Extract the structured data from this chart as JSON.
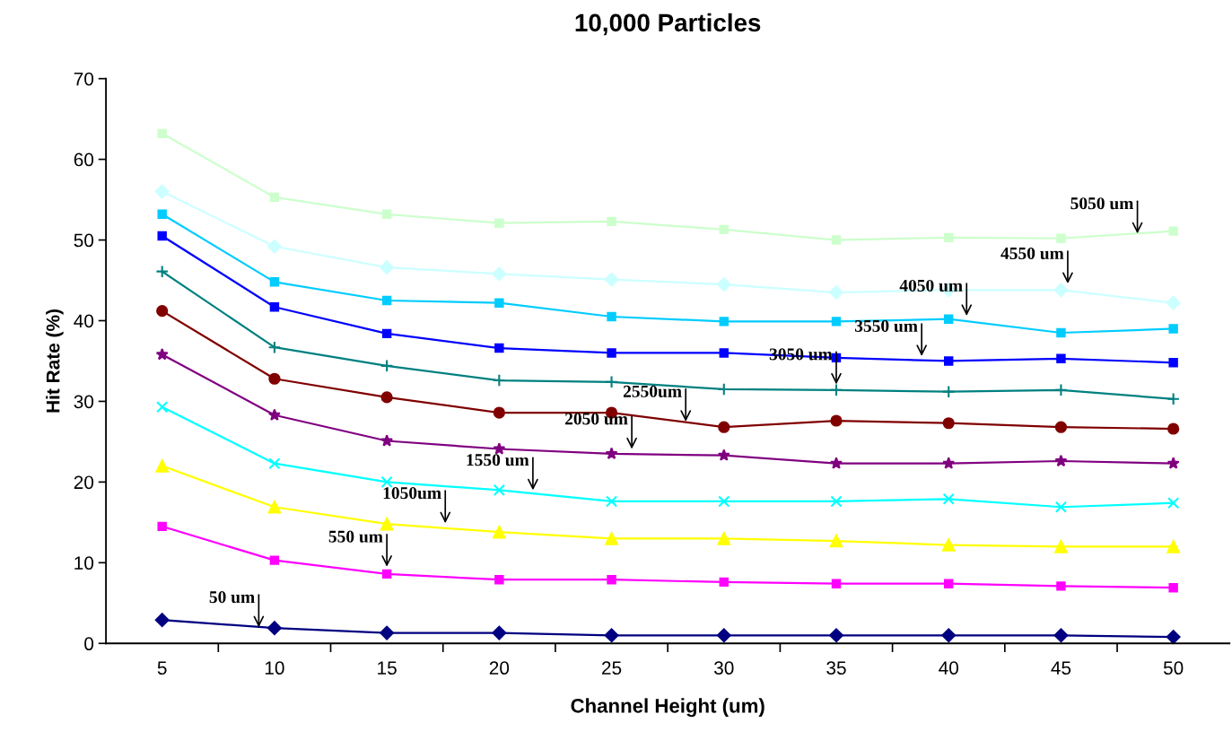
{
  "chart_data": {
    "type": "line",
    "title": "10,000 Particles",
    "xlabel": "Channel Height (um)",
    "ylabel": "Hit Rate (%)",
    "x": [
      5,
      10,
      15,
      20,
      25,
      30,
      35,
      40,
      45,
      50
    ],
    "xlim": [
      2.5,
      52.5
    ],
    "xticks": [
      {
        "value": 5,
        "label": "5"
      },
      {
        "value": 7.5,
        "label": null
      },
      {
        "value": 10,
        "label": "10"
      },
      {
        "value": 12.5,
        "label": null
      },
      {
        "value": 15,
        "label": "15"
      },
      {
        "value": 17.5,
        "label": null
      },
      {
        "value": 20,
        "label": "20"
      },
      {
        "value": 22.5,
        "label": null
      },
      {
        "value": 25,
        "label": "25"
      },
      {
        "value": 27.5,
        "label": null
      },
      {
        "value": 30,
        "label": "30"
      },
      {
        "value": 32.5,
        "label": null
      },
      {
        "value": 35,
        "label": "35"
      },
      {
        "value": 37.5,
        "label": null
      },
      {
        "value": 40,
        "label": "40"
      },
      {
        "value": 42.5,
        "label": null
      },
      {
        "value": 45,
        "label": "45"
      },
      {
        "value": 47.5,
        "label": null
      },
      {
        "value": 50,
        "label": "50"
      }
    ],
    "ylim": [
      0,
      70
    ],
    "yticks": [
      0,
      10,
      20,
      30,
      40,
      50,
      60,
      70
    ],
    "grid": false,
    "legend": false,
    "series": [
      {
        "color": "#000080",
        "marker": "diamond",
        "values": [
          2.9,
          1.9,
          1.3,
          1.3,
          1.0,
          1.0,
          1.0,
          1.0,
          1.0,
          0.8
        ]
      },
      {
        "color": "#ff00ff",
        "marker": "square",
        "values": [
          14.5,
          10.3,
          8.6,
          7.9,
          7.9,
          7.6,
          7.4,
          7.4,
          7.1,
          6.9
        ]
      },
      {
        "color": "#ffff00",
        "marker": "triangle",
        "values": [
          22.0,
          16.9,
          14.8,
          13.8,
          13.0,
          13.0,
          12.7,
          12.2,
          12.0,
          12.0
        ]
      },
      {
        "color": "#00ffff",
        "marker": "cross",
        "values": [
          29.3,
          22.3,
          20.0,
          19.0,
          17.6,
          17.6,
          17.6,
          17.9,
          16.9,
          17.4
        ]
      },
      {
        "color": "#800080",
        "marker": "star",
        "values": [
          35.8,
          28.3,
          25.1,
          24.1,
          23.5,
          23.3,
          22.3,
          22.3,
          22.6,
          22.3
        ]
      },
      {
        "color": "#800000",
        "marker": "circle",
        "values": [
          41.2,
          32.8,
          30.5,
          28.6,
          28.6,
          26.8,
          27.6,
          27.3,
          26.8,
          26.6
        ]
      },
      {
        "color": "#008080",
        "marker": "plus",
        "values": [
          46.1,
          36.7,
          34.4,
          32.6,
          32.4,
          31.5,
          31.4,
          31.2,
          31.4,
          30.3
        ]
      },
      {
        "color": "#0000ff",
        "marker": "square",
        "values": [
          50.5,
          41.7,
          38.4,
          36.6,
          36.0,
          36.0,
          35.4,
          35.0,
          35.3,
          34.8
        ]
      },
      {
        "color": "#00ccff",
        "marker": "square",
        "values": [
          53.2,
          44.8,
          42.5,
          42.2,
          40.5,
          39.9,
          39.9,
          40.2,
          38.5,
          39.0
        ]
      },
      {
        "color": "#ccffff",
        "marker": "diamond",
        "values": [
          56.0,
          49.2,
          46.6,
          45.8,
          45.1,
          44.5,
          43.5,
          43.8,
          43.8,
          42.2
        ]
      },
      {
        "color": "#ccffcc",
        "marker": "square",
        "values": [
          63.2,
          55.3,
          53.2,
          52.1,
          52.3,
          51.3,
          50.0,
          50.3,
          50.2,
          51.1
        ]
      }
    ],
    "annotations": [
      {
        "text": "50 um",
        "x": 9.3,
        "y": 2.0
      },
      {
        "text": "550 um",
        "x": 15.0,
        "y": 9.5
      },
      {
        "text": "1050um",
        "x": 17.6,
        "y": 14.9
      },
      {
        "text": "1550 um",
        "x": 21.5,
        "y": 19.0
      },
      {
        "text": "2050 um",
        "x": 25.9,
        "y": 24.1
      },
      {
        "text": "2550um",
        "x": 28.3,
        "y": 27.5
      },
      {
        "text": "3050 um",
        "x": 35.0,
        "y": 32.1
      },
      {
        "text": "3550 um",
        "x": 38.8,
        "y": 35.6
      },
      {
        "text": "4050 um",
        "x": 40.8,
        "y": 40.6
      },
      {
        "text": "4550 um",
        "x": 45.3,
        "y": 44.6
      },
      {
        "text": "5050 um",
        "x": 48.4,
        "y": 50.8
      }
    ]
  }
}
